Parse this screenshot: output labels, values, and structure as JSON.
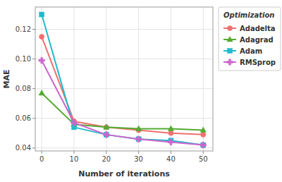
{
  "chart_data": {
    "type": "line",
    "xlabel": "Number of iterations",
    "ylabel": "MAE",
    "legend_title": "Optimization",
    "x": [
      0,
      10,
      20,
      30,
      40,
      50
    ],
    "series": [
      {
        "name": "Adadelta",
        "color": "#F07070",
        "marker": "circle",
        "values": [
          0.115,
          0.058,
          0.054,
          0.052,
          0.05,
          0.049
        ]
      },
      {
        "name": "Adagrad",
        "color": "#55AA33",
        "marker": "triangle",
        "values": [
          0.077,
          0.056,
          0.054,
          0.053,
          0.053,
          0.052
        ]
      },
      {
        "name": "Adam",
        "color": "#22BBCC",
        "marker": "square",
        "values": [
          0.13,
          0.054,
          0.049,
          0.046,
          0.045,
          0.042
        ]
      },
      {
        "name": "RMSprop",
        "color": "#CC66CC",
        "marker": "plus",
        "values": [
          0.099,
          0.057,
          0.049,
          0.046,
          0.044,
          0.042
        ]
      }
    ],
    "xlim": [
      -2,
      53
    ],
    "ylim": [
      0.038,
      0.135
    ],
    "xticks": [
      0,
      10,
      20,
      30,
      40,
      50
    ],
    "yticks": [
      0.04,
      0.06,
      0.08,
      {
        "value": 0.1,
        "label": "0.10"
      },
      0.12
    ],
    "grid": true,
    "legend": "right"
  }
}
